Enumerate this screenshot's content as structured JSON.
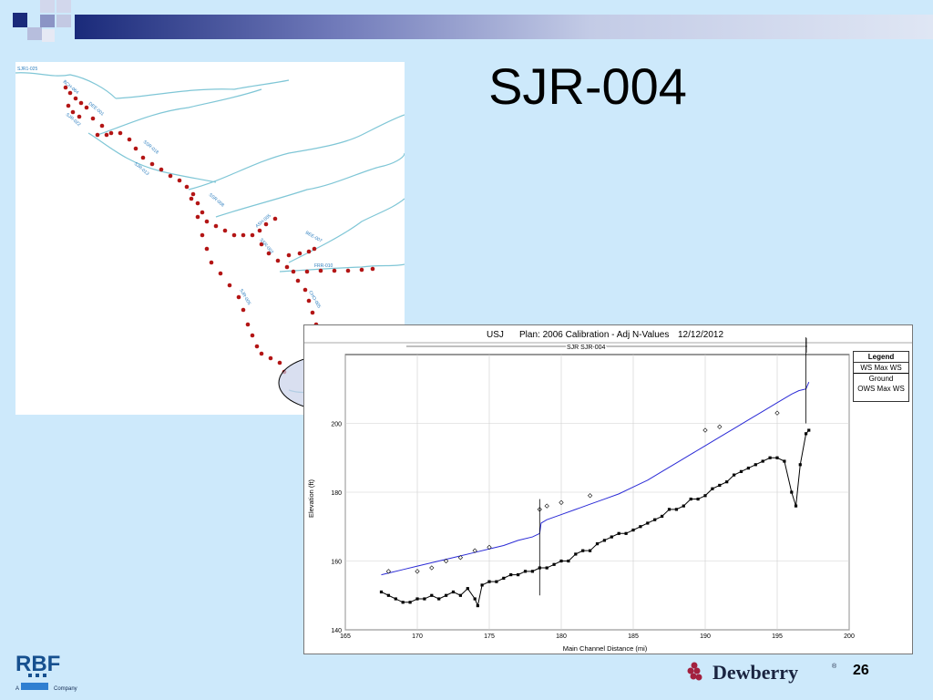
{
  "slide": {
    "title": "SJR-004",
    "page_number": "26"
  },
  "colors": {
    "background": "#cde9fb",
    "banner_dark": "#1a2a7a",
    "river": "#7fc6d6",
    "points": "#b31515",
    "ws_line": "#2b2bd6",
    "ground": "#000000"
  },
  "map": {
    "labels": [
      "SJR1-025",
      "BCH-064",
      "DEE-001",
      "SJR-022",
      "SSR-018",
      "SJR-013",
      "SSR-008",
      "ASH-005",
      "SSR-002",
      "BEE-007",
      "FRR-010",
      "SJR-005",
      "CHO-005",
      "ASH-004"
    ]
  },
  "chart_header": {
    "name": "USJ",
    "plan": "Plan: 2006 Calibration - Adj N-Values",
    "date": "12/12/2012",
    "reach": "SJR SJR-004"
  },
  "legend": {
    "title": "Legend",
    "items": [
      "WS Max WS",
      "Ground",
      "OWS Max WS"
    ]
  },
  "chart_data": {
    "type": "line",
    "xlabel": "Main Channel Distance (mi)",
    "ylabel": "Elevation (ft)",
    "xlim": [
      165,
      200
    ],
    "ylim": [
      140,
      200
    ],
    "x_ticks": [
      "165",
      "170",
      "175",
      "180",
      "185",
      "190",
      "195",
      "200"
    ],
    "y_ticks": [
      "140",
      "160",
      "180",
      "200"
    ],
    "grid": true,
    "legend_placement": "right",
    "series": [
      {
        "name": "WS Max WS",
        "x": [
          167.5,
          168,
          169,
          170,
          171,
          172,
          173,
          174,
          175,
          176,
          177,
          178,
          178.5,
          178.6,
          179,
          180,
          181,
          182,
          183,
          184,
          185,
          186,
          187,
          188,
          189,
          190,
          191,
          192,
          193,
          194,
          195,
          196,
          196.5,
          197,
          197.2
        ],
        "y": [
          156,
          156.5,
          157.5,
          158.5,
          159.5,
          160.5,
          161.5,
          162.5,
          163.5,
          164.5,
          166,
          167,
          168,
          171,
          172,
          173.5,
          175,
          176.5,
          178,
          179.5,
          181.5,
          183.5,
          186,
          188.5,
          191,
          193.5,
          196,
          198.5,
          201,
          203.5,
          206,
          208.5,
          209.5,
          210,
          212
        ]
      },
      {
        "name": "Ground",
        "x": [
          167.5,
          168,
          168.5,
          169,
          169.5,
          170,
          170.5,
          171,
          171.5,
          172,
          172.5,
          173,
          173.5,
          174,
          174.2,
          174.5,
          175,
          175.5,
          176,
          176.5,
          177,
          177.5,
          178,
          178.5,
          179,
          179.5,
          180,
          180.5,
          181,
          181.5,
          182,
          182.5,
          183,
          183.5,
          184,
          184.5,
          185,
          185.5,
          186,
          186.5,
          187,
          187.5,
          188,
          188.5,
          189,
          189.5,
          190,
          190.5,
          191,
          191.5,
          192,
          192.5,
          193,
          193.5,
          194,
          194.5,
          195,
          195.5,
          196,
          196.3,
          196.6,
          197,
          197.2
        ],
        "y": [
          151,
          150,
          149,
          148,
          148,
          149,
          149,
          150,
          149,
          150,
          151,
          150,
          152,
          149,
          147,
          153,
          154,
          154,
          155,
          156,
          156,
          157,
          157,
          158,
          158,
          159,
          160,
          160,
          162,
          163,
          163,
          165,
          166,
          167,
          168,
          168,
          169,
          170,
          171,
          172,
          173,
          175,
          175,
          176,
          178,
          178,
          179,
          181,
          182,
          183,
          185,
          186,
          187,
          188,
          189,
          190,
          190,
          189,
          180,
          176,
          188,
          197,
          198
        ]
      },
      {
        "name": "OWS Max WS",
        "x": [
          168,
          170,
          171,
          172,
          173,
          174,
          175,
          178.5,
          179,
          180,
          182,
          190,
          191,
          195
        ],
        "y": [
          157,
          157,
          158,
          160,
          161,
          163,
          164,
          175,
          176,
          177,
          179,
          198,
          199,
          203
        ]
      }
    ]
  }
}
